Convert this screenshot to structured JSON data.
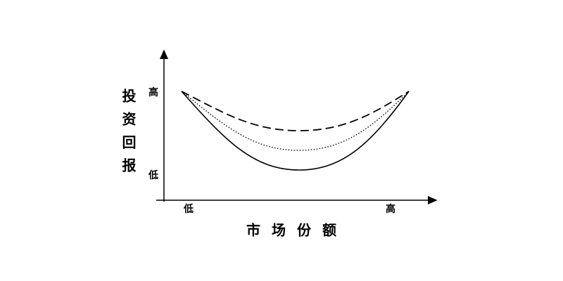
{
  "y_axis": {
    "label": "投资回报",
    "high": "高",
    "low": "低"
  },
  "x_axis": {
    "label": "市场份额",
    "low": "低",
    "high": "高"
  }
}
